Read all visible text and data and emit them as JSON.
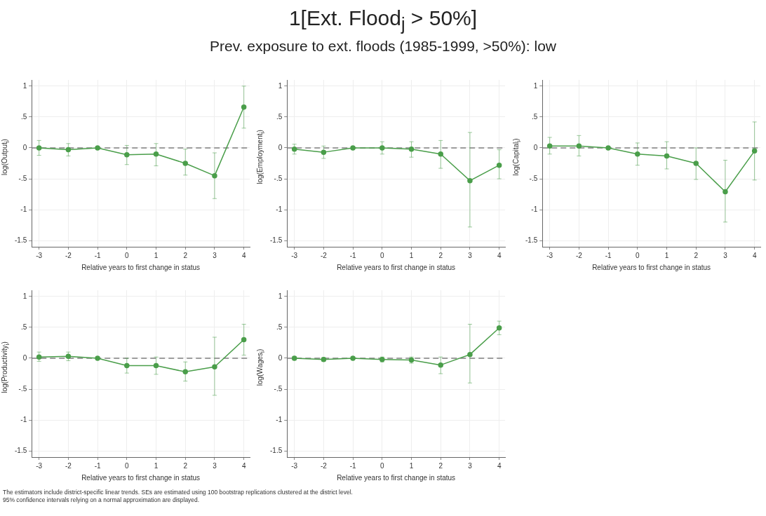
{
  "chart_data": [
    {
      "type": "other",
      "title": "1[Ext. Flood$_{j}$ > 50%]",
      "subtitle": "Prev. exposure to ext. floods (1985-1999, >50%): low"
    },
    {
      "type": "line",
      "xlabel": "Relative years to first change in status",
      "ylabel": "log(Output$_{i}$)",
      "x": [
        -3,
        -2,
        -1,
        0,
        1,
        2,
        3,
        4
      ],
      "series": [
        {
          "color": "#4a9e4a",
          "values": [
            0,
            -0.03,
            0,
            -0.11,
            -0.1,
            -0.25,
            -0.45,
            0.66
          ],
          "errors": [
            [
              -0.12,
              0.12
            ],
            [
              -0.13,
              0.07
            ],
            null,
            [
              -0.27,
              0.04
            ],
            [
              -0.29,
              0.07
            ],
            [
              -0.44,
              -0.02
            ],
            [
              -0.82,
              -0.08
            ],
            [
              0.32,
              1.0
            ]
          ]
        }
      ],
      "xlim": [
        -3.25,
        4.2
      ],
      "xticks": [
        -3,
        -2,
        -1,
        0,
        1,
        2,
        3,
        4
      ],
      "ylim": [
        -1.6,
        1.1
      ],
      "yticks": [
        {
          "value": -1.5,
          "label": "-1.5"
        },
        {
          "value": -1,
          "label": "-1"
        },
        {
          "value": -0.5,
          "label": "-.5"
        },
        {
          "value": 0,
          "label": "0"
        },
        {
          "value": 0.5,
          "label": ".5"
        },
        {
          "value": 1,
          "label": "1"
        }
      ],
      "grid": true,
      "marker": "circle",
      "ref_lines": [
        {
          "axis": "y",
          "value": 0,
          "color": "#808080",
          "line_style": "dashed"
        }
      ]
    },
    {
      "type": "line",
      "xlabel": "Relative years to first change in status",
      "ylabel": "log(Employment$_{i}$)",
      "x": [
        -3,
        -2,
        -1,
        0,
        1,
        2,
        3,
        4
      ],
      "series": [
        {
          "color": "#4a9e4a",
          "values": [
            -0.02,
            -0.07,
            0,
            0,
            -0.02,
            -0.1,
            -0.53,
            -0.28
          ],
          "errors": [
            [
              -0.1,
              0.06
            ],
            [
              -0.17,
              0.03
            ],
            null,
            [
              -0.1,
              0.1
            ],
            [
              -0.15,
              0.1
            ],
            [
              -0.33,
              0.12
            ],
            [
              -1.28,
              0.25
            ],
            [
              -0.5,
              -0.03
            ]
          ]
        }
      ],
      "xlim": [
        -3.25,
        4.2
      ],
      "xticks": [
        -3,
        -2,
        -1,
        0,
        1,
        2,
        3,
        4
      ],
      "ylim": [
        -1.6,
        1.1
      ],
      "yticks": [
        {
          "value": -1.5,
          "label": "-1.5"
        },
        {
          "value": -1,
          "label": "-1"
        },
        {
          "value": -0.5,
          "label": "-.5"
        },
        {
          "value": 0,
          "label": "0"
        },
        {
          "value": 0.5,
          "label": ".5"
        },
        {
          "value": 1,
          "label": "1"
        }
      ],
      "grid": true,
      "marker": "circle",
      "ref_lines": [
        {
          "axis": "y",
          "value": 0,
          "color": "#808080",
          "line_style": "dashed"
        }
      ]
    },
    {
      "type": "line",
      "xlabel": "Relative years to first change in status",
      "ylabel": "log(Capital$_{i}$)",
      "x": [
        -3,
        -2,
        -1,
        0,
        1,
        2,
        3,
        4
      ],
      "series": [
        {
          "color": "#4a9e4a",
          "values": [
            0.03,
            0.03,
            0,
            -0.1,
            -0.13,
            -0.25,
            -0.71,
            -0.05
          ],
          "errors": [
            [
              -0.1,
              0.17
            ],
            [
              -0.13,
              0.2
            ],
            null,
            [
              -0.28,
              0.08
            ],
            [
              -0.34,
              0.1
            ],
            [
              -0.51,
              0.0
            ],
            [
              -1.2,
              -0.2
            ],
            [
              -0.52,
              0.42
            ]
          ]
        }
      ],
      "xlim": [
        -3.25,
        4.2
      ],
      "xticks": [
        -3,
        -2,
        -1,
        0,
        1,
        2,
        3,
        4
      ],
      "ylim": [
        -1.6,
        1.1
      ],
      "yticks": [
        {
          "value": -1.5,
          "label": "-1.5"
        },
        {
          "value": -1,
          "label": "-1"
        },
        {
          "value": -0.5,
          "label": "-.5"
        },
        {
          "value": 0,
          "label": "0"
        },
        {
          "value": 0.5,
          "label": ".5"
        },
        {
          "value": 1,
          "label": "1"
        }
      ],
      "grid": true,
      "marker": "circle",
      "ref_lines": [
        {
          "axis": "y",
          "value": 0,
          "color": "#808080",
          "line_style": "dashed"
        }
      ]
    },
    {
      "type": "line",
      "xlabel": "Relative years to first change in status",
      "ylabel": "log(Productivity$_{i}$)",
      "x": [
        -3,
        -2,
        -1,
        0,
        1,
        2,
        3,
        4
      ],
      "series": [
        {
          "color": "#4a9e4a",
          "values": [
            0.02,
            0.03,
            0,
            -0.12,
            -0.12,
            -0.22,
            -0.14,
            0.3
          ],
          "errors": [
            [
              -0.05,
              0.1
            ],
            [
              -0.04,
              0.1
            ],
            null,
            [
              -0.24,
              0.0
            ],
            [
              -0.26,
              0.02
            ],
            [
              -0.37,
              -0.06
            ],
            [
              -0.6,
              0.34
            ],
            [
              0.05,
              0.55
            ]
          ]
        }
      ],
      "xlim": [
        -3.25,
        4.2
      ],
      "xticks": [
        -3,
        -2,
        -1,
        0,
        1,
        2,
        3,
        4
      ],
      "ylim": [
        -1.6,
        1.1
      ],
      "yticks": [
        {
          "value": -1.5,
          "label": "-1.5"
        },
        {
          "value": -1,
          "label": "-1"
        },
        {
          "value": -0.5,
          "label": "-.5"
        },
        {
          "value": 0,
          "label": "0"
        },
        {
          "value": 0.5,
          "label": ".5"
        },
        {
          "value": 1,
          "label": "1"
        }
      ],
      "grid": true,
      "marker": "circle",
      "ref_lines": [
        {
          "axis": "y",
          "value": 0,
          "color": "#808080",
          "line_style": "dashed"
        }
      ]
    },
    {
      "type": "line",
      "xlabel": "Relative years to first change in status",
      "ylabel": "log(Wages$_{i}$)",
      "x": [
        -3,
        -2,
        -1,
        0,
        1,
        2,
        3,
        4
      ],
      "series": [
        {
          "color": "#4a9e4a",
          "values": [
            0,
            -0.02,
            0,
            -0.02,
            -0.03,
            -0.11,
            0.06,
            0.49
          ],
          "errors": [
            [
              -0.03,
              0.03
            ],
            [
              -0.05,
              0.01
            ],
            null,
            [
              -0.06,
              0.02
            ],
            [
              -0.08,
              0.02
            ],
            [
              -0.25,
              0.02
            ],
            [
              -0.4,
              0.55
            ],
            [
              0.38,
              0.6
            ]
          ]
        }
      ],
      "xlim": [
        -3.25,
        4.2
      ],
      "xticks": [
        -3,
        -2,
        -1,
        0,
        1,
        2,
        3,
        4
      ],
      "ylim": [
        -1.6,
        1.1
      ],
      "yticks": [
        {
          "value": -1.5,
          "label": "-1.5"
        },
        {
          "value": -1,
          "label": "-1"
        },
        {
          "value": -0.5,
          "label": "-.5"
        },
        {
          "value": 0,
          "label": "0"
        },
        {
          "value": 0.5,
          "label": ".5"
        },
        {
          "value": 1,
          "label": "1"
        }
      ],
      "grid": true,
      "marker": "circle",
      "ref_lines": [
        {
          "axis": "y",
          "value": 0,
          "color": "#808080",
          "line_style": "dashed"
        }
      ]
    },
    {
      "type": "other",
      "annotations": [
        "The estimators include district-specific linear trends. SEs are estimated using 100 bootstrap replications clustered at the district level.",
        "95% confidence intervals relying on a normal approximation are displayed."
      ]
    }
  ]
}
